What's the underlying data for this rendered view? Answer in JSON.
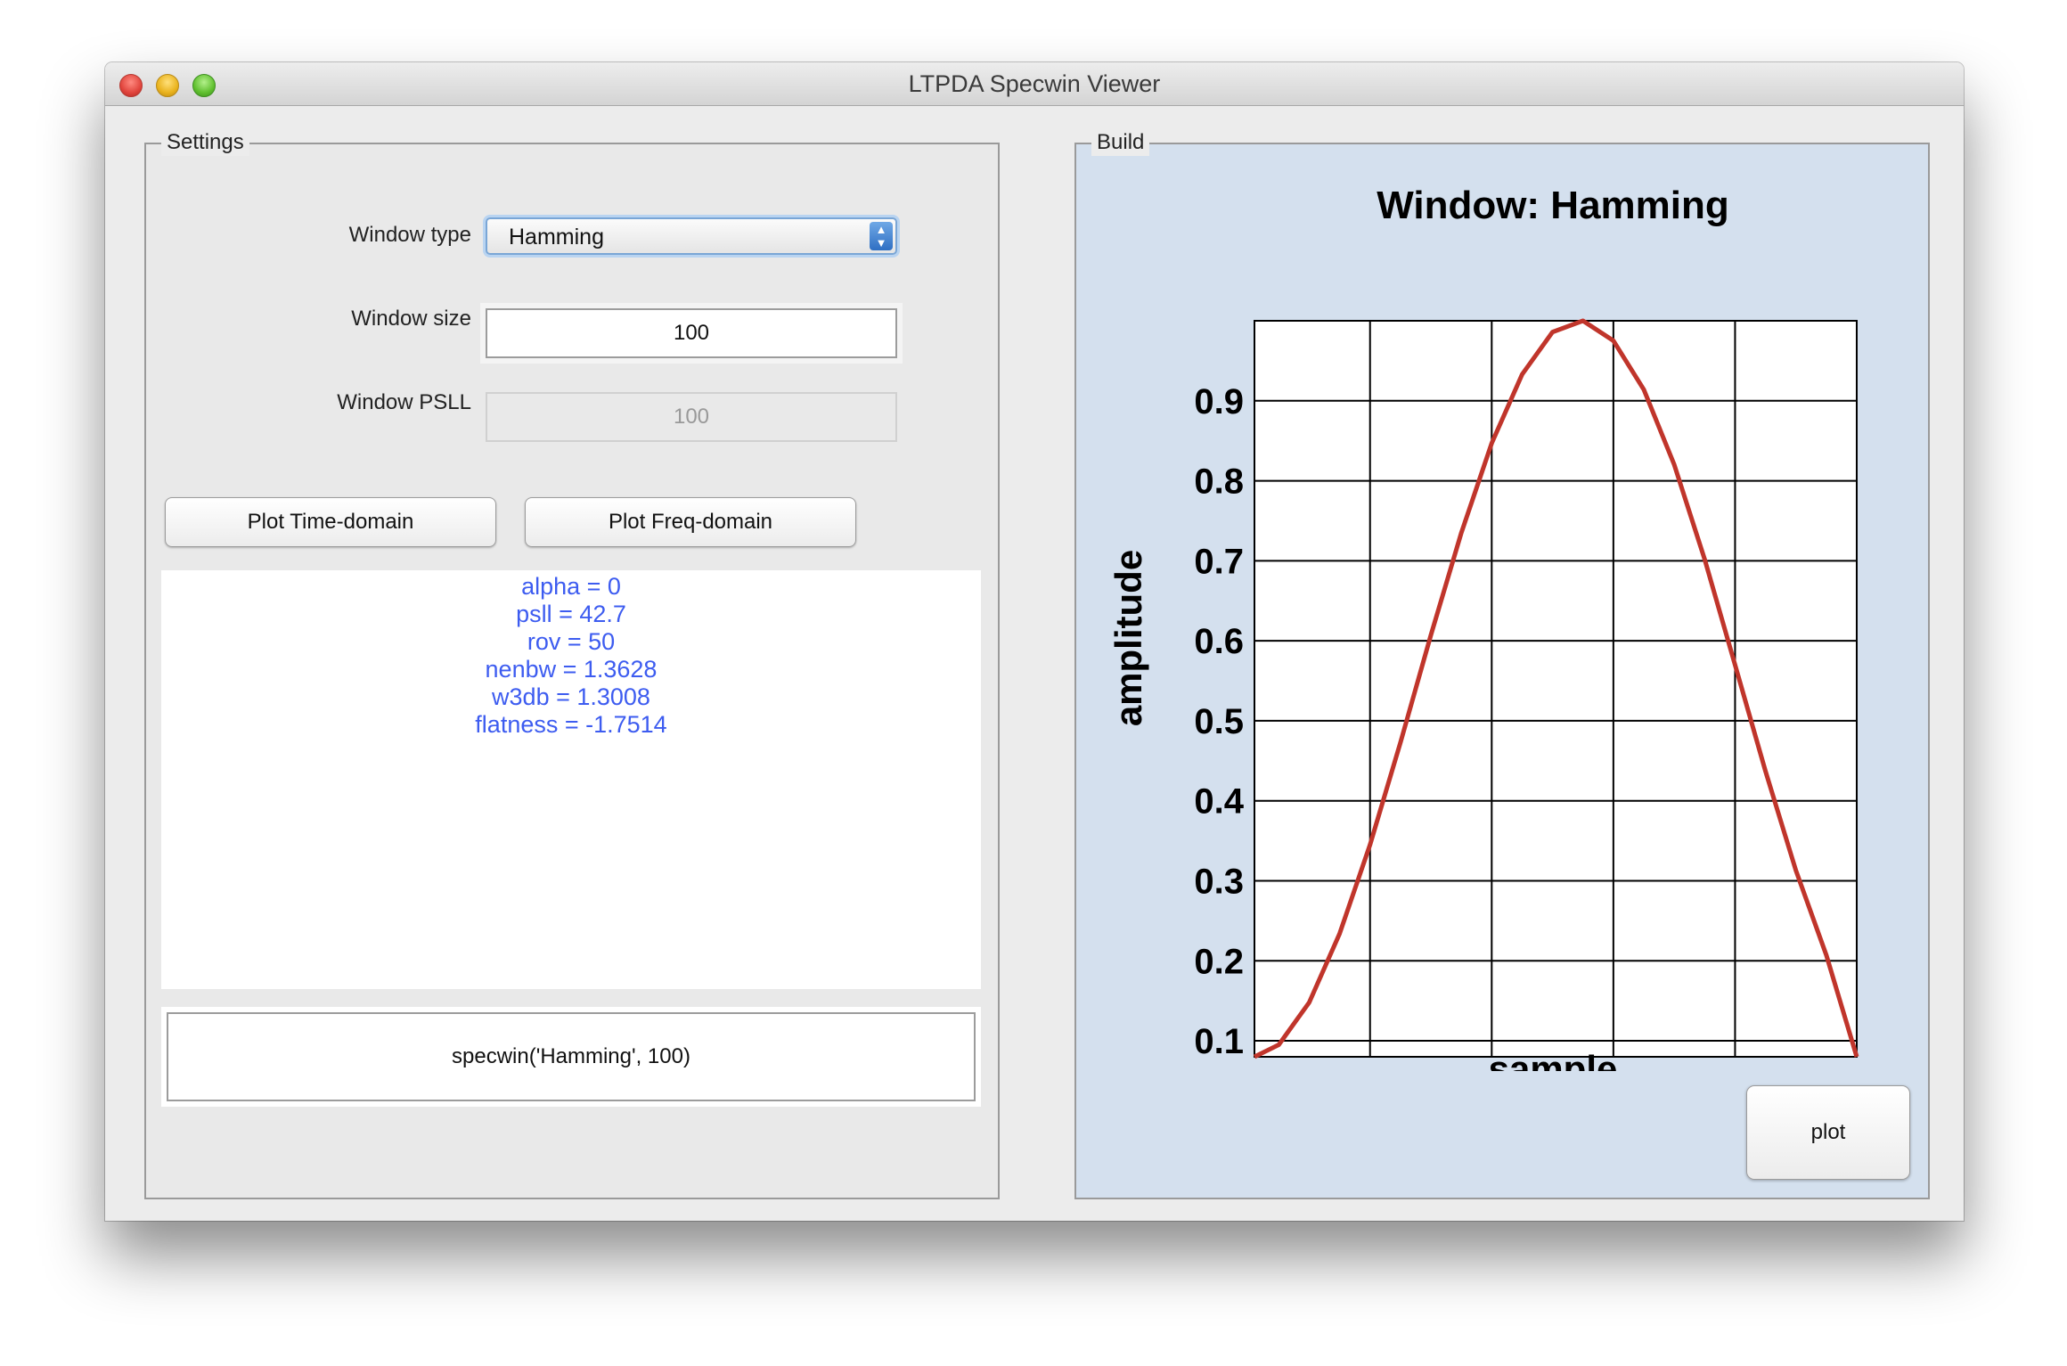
{
  "window": {
    "title": "LTPDA Specwin Viewer"
  },
  "settings": {
    "legend": "Settings",
    "window_type": {
      "label": "Window type",
      "value": "Hamming"
    },
    "window_size": {
      "label": "Window size",
      "value": "100"
    },
    "window_psll": {
      "label": "Window PSLL",
      "value": "100"
    },
    "buttons": {
      "plot_time": "Plot Time-domain",
      "plot_freq": "Plot Freq-domain"
    },
    "info_lines": [
      "alpha = 0",
      "psll = 42.7",
      "rov = 50",
      "nenbw = 1.3628",
      "w3db = 1.3008",
      "flatness = -1.7514"
    ],
    "command": "specwin('Hamming', 100)"
  },
  "build": {
    "legend": "Build",
    "plot_button": "plot"
  },
  "colors": {
    "info_text": "#3d5cf0",
    "curve": "#c0352b",
    "build_background": "#d4e0ee",
    "select_arrow": "#2f6fc3"
  },
  "icons": {
    "select_arrows": "updown-arrows-icon",
    "close": "close-icon",
    "minimize": "minimize-icon",
    "zoom": "zoom-icon"
  },
  "chart_data": {
    "type": "line",
    "title": "Window: Hamming",
    "xlabel": "sample",
    "ylabel": "amplitude",
    "xlim": [
      1,
      100
    ],
    "ylim": [
      0.08,
      1.0
    ],
    "xticks": [
      20,
      40,
      60,
      80,
      100
    ],
    "yticks": [
      0.1,
      0.2,
      0.3,
      0.4,
      0.5,
      0.6,
      0.7,
      0.8,
      0.9
    ],
    "yticklabels": [
      "0.1",
      "0.2",
      "0.3",
      "0.4",
      "0.5",
      "0.6",
      "0.7",
      "0.8",
      "0.9"
    ],
    "grid": true,
    "legend": "none",
    "series": [
      {
        "color": "#c0352b",
        "x": [
          1,
          5,
          10,
          15,
          20,
          25,
          30,
          35,
          40,
          45,
          50,
          55,
          60,
          65,
          70,
          75,
          80,
          85,
          90,
          95,
          100
        ],
        "y": [
          0.08,
          0.095,
          0.148,
          0.234,
          0.345,
          0.473,
          0.607,
          0.735,
          0.847,
          0.933,
          0.986,
          1.0,
          0.975,
          0.914,
          0.82,
          0.702,
          0.57,
          0.437,
          0.313,
          0.207,
          0.08
        ]
      }
    ]
  }
}
